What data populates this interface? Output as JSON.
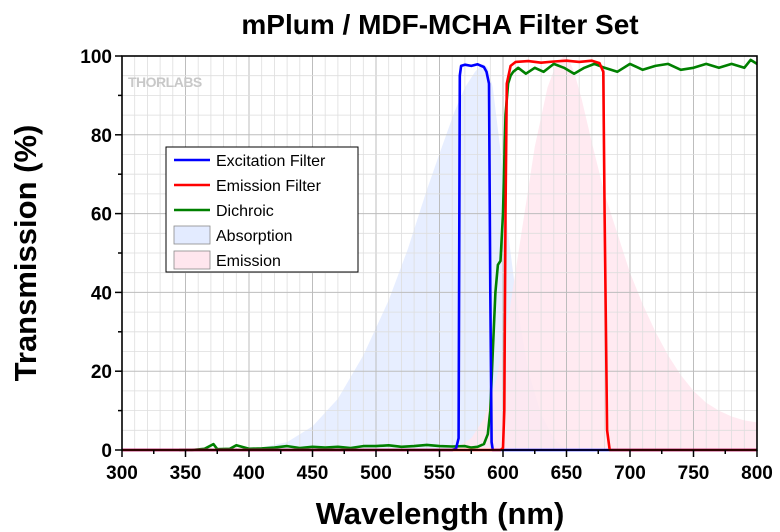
{
  "chart_data": {
    "type": "line",
    "title": "mPlum / MDF-MCHA Filter Set",
    "xlabel": "Wavelength (nm)",
    "ylabel": "Transmission (%)",
    "xlim": [
      300,
      800
    ],
    "ylim": [
      0,
      100
    ],
    "xticks": [
      300,
      350,
      400,
      450,
      500,
      550,
      600,
      650,
      700,
      750,
      800
    ],
    "yticks": [
      0,
      20,
      40,
      60,
      80,
      100
    ],
    "grid": true,
    "legend_position": "upper-left",
    "logo_text": "THORLABS",
    "series": [
      {
        "name": "Excitation Filter",
        "kind": "line",
        "color": "#0000ff",
        "x": [
          300,
          560,
          563,
          565,
          566,
          567,
          570,
          575,
          580,
          585,
          587,
          589,
          590,
          591,
          592,
          600,
          800
        ],
        "y": [
          0,
          0,
          0.3,
          3,
          95,
          97.5,
          97.8,
          97.5,
          97.9,
          97.2,
          96,
          93,
          40,
          2,
          0,
          0,
          0
        ]
      },
      {
        "name": "Emission Filter",
        "kind": "line",
        "color": "#ff0000",
        "x": [
          300,
          598,
          600,
          601,
          602,
          603,
          606,
          610,
          620,
          630,
          640,
          650,
          660,
          670,
          676,
          679,
          680,
          682,
          684,
          800
        ],
        "y": [
          0,
          0,
          0.5,
          10,
          60,
          93,
          97.5,
          98.5,
          98.7,
          98.3,
          98.6,
          98.8,
          98.5,
          98.8,
          98.2,
          96,
          60,
          5,
          0,
          0
        ]
      },
      {
        "name": "Dichroic",
        "kind": "line",
        "color": "#008000",
        "x": [
          345,
          355,
          365,
          372,
          375,
          385,
          390,
          400,
          410,
          420,
          430,
          440,
          450,
          460,
          470,
          480,
          490,
          500,
          510,
          520,
          530,
          540,
          550,
          560,
          570,
          575,
          580,
          585,
          588,
          590,
          592,
          594,
          596,
          598,
          600,
          602,
          604,
          606,
          608,
          612,
          618,
          625,
          632,
          640,
          648,
          656,
          664,
          672,
          680,
          690,
          700,
          710,
          720,
          730,
          740,
          750,
          760,
          770,
          780,
          790,
          795,
          800
        ],
        "y": [
          0,
          0,
          0.3,
          1.5,
          0.2,
          0.3,
          1.2,
          0.3,
          0.4,
          0.6,
          1.0,
          0.5,
          0.8,
          0.6,
          0.8,
          0.5,
          1.0,
          1.0,
          1.2,
          0.8,
          1.0,
          1.3,
          1.0,
          0.9,
          1.0,
          0.6,
          0.8,
          1.5,
          4,
          10,
          25,
          40,
          47,
          48,
          60,
          85,
          93,
          95,
          96,
          97,
          95.5,
          97,
          96,
          98,
          97,
          95.5,
          97,
          98,
          97,
          96,
          98,
          96.5,
          97.5,
          98,
          96.5,
          97,
          98,
          97,
          98,
          97,
          99,
          98
        ]
      },
      {
        "name": "Absorption",
        "kind": "area",
        "color": "#e3ebff",
        "x": [
          300,
          350,
          400,
          430,
          450,
          470,
          490,
          510,
          525,
          540,
          552,
          562,
          570,
          578,
          584,
          588,
          592,
          598,
          604,
          612,
          620,
          630,
          640,
          650
        ],
        "y": [
          0,
          0,
          0,
          2,
          6,
          13,
          24,
          38,
          51,
          66,
          77,
          86,
          92,
          96,
          98,
          97,
          92,
          76,
          55,
          35,
          20,
          9,
          3,
          0
        ]
      },
      {
        "name": "Emission",
        "kind": "area",
        "color": "#ffe6ee",
        "x": [
          560,
          575,
          585,
          595,
          605,
          615,
          625,
          635,
          642,
          648,
          652,
          656,
          662,
          670,
          680,
          690,
          700,
          710,
          720,
          730,
          740,
          750,
          760,
          770,
          780,
          790,
          800
        ],
        "y": [
          0,
          3,
          8,
          18,
          35,
          56,
          77,
          92,
          98,
          100,
          99,
          96,
          89,
          78,
          65,
          55,
          45,
          37,
          30,
          24,
          19,
          15,
          12,
          10,
          8.5,
          7.5,
          7
        ]
      }
    ]
  }
}
